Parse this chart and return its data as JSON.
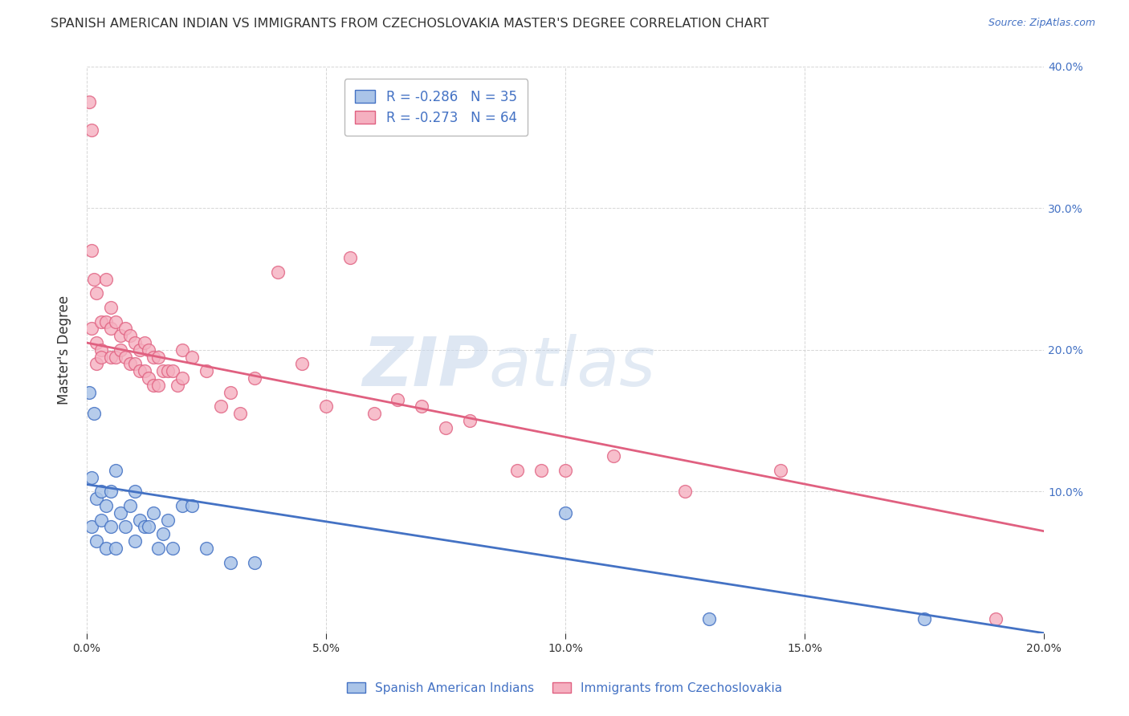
{
  "title": "SPANISH AMERICAN INDIAN VS IMMIGRANTS FROM CZECHOSLOVAKIA MASTER'S DEGREE CORRELATION CHART",
  "source": "Source: ZipAtlas.com",
  "ylabel": "Master's Degree",
  "legend_label1": "Spanish American Indians",
  "legend_label2": "Immigrants from Czechoslovakia",
  "r1": -0.286,
  "n1": 35,
  "r2": -0.273,
  "n2": 64,
  "color1": "#aac4e8",
  "color2": "#f5b0c0",
  "line_color1": "#4472c4",
  "line_color2": "#e06080",
  "xlim": [
    0.0,
    0.2
  ],
  "ylim": [
    0.0,
    0.4
  ],
  "xticks": [
    0.0,
    0.05,
    0.1,
    0.15,
    0.2
  ],
  "yticks": [
    0.0,
    0.1,
    0.2,
    0.3,
    0.4
  ],
  "xticklabels": [
    "0.0%",
    "5.0%",
    "10.0%",
    "15.0%",
    "20.0%"
  ],
  "yticklabels_right": [
    "",
    "10.0%",
    "20.0%",
    "30.0%",
    "40.0%"
  ],
  "background_color": "#ffffff",
  "scatter1_x": [
    0.0005,
    0.001,
    0.001,
    0.0015,
    0.002,
    0.002,
    0.003,
    0.003,
    0.004,
    0.004,
    0.005,
    0.005,
    0.006,
    0.006,
    0.007,
    0.008,
    0.009,
    0.01,
    0.01,
    0.011,
    0.012,
    0.013,
    0.014,
    0.015,
    0.016,
    0.017,
    0.018,
    0.02,
    0.022,
    0.025,
    0.03,
    0.035,
    0.1,
    0.13,
    0.175
  ],
  "scatter1_y": [
    0.17,
    0.075,
    0.11,
    0.155,
    0.065,
    0.095,
    0.1,
    0.08,
    0.09,
    0.06,
    0.1,
    0.075,
    0.115,
    0.06,
    0.085,
    0.075,
    0.09,
    0.065,
    0.1,
    0.08,
    0.075,
    0.075,
    0.085,
    0.06,
    0.07,
    0.08,
    0.06,
    0.09,
    0.09,
    0.06,
    0.05,
    0.05,
    0.085,
    0.01,
    0.01
  ],
  "scatter2_x": [
    0.0005,
    0.001,
    0.001,
    0.001,
    0.0015,
    0.002,
    0.002,
    0.002,
    0.003,
    0.003,
    0.003,
    0.004,
    0.004,
    0.005,
    0.005,
    0.005,
    0.006,
    0.006,
    0.007,
    0.007,
    0.008,
    0.008,
    0.009,
    0.009,
    0.01,
    0.01,
    0.011,
    0.011,
    0.012,
    0.012,
    0.013,
    0.013,
    0.014,
    0.014,
    0.015,
    0.015,
    0.016,
    0.017,
    0.018,
    0.019,
    0.02,
    0.02,
    0.022,
    0.025,
    0.028,
    0.03,
    0.032,
    0.035,
    0.04,
    0.045,
    0.05,
    0.055,
    0.06,
    0.065,
    0.07,
    0.075,
    0.08,
    0.09,
    0.095,
    0.1,
    0.11,
    0.125,
    0.145,
    0.19
  ],
  "scatter2_y": [
    0.375,
    0.355,
    0.215,
    0.27,
    0.25,
    0.24,
    0.205,
    0.19,
    0.22,
    0.2,
    0.195,
    0.25,
    0.22,
    0.23,
    0.215,
    0.195,
    0.22,
    0.195,
    0.21,
    0.2,
    0.215,
    0.195,
    0.21,
    0.19,
    0.205,
    0.19,
    0.2,
    0.185,
    0.205,
    0.185,
    0.2,
    0.18,
    0.195,
    0.175,
    0.195,
    0.175,
    0.185,
    0.185,
    0.185,
    0.175,
    0.2,
    0.18,
    0.195,
    0.185,
    0.16,
    0.17,
    0.155,
    0.18,
    0.255,
    0.19,
    0.16,
    0.265,
    0.155,
    0.165,
    0.16,
    0.145,
    0.15,
    0.115,
    0.115,
    0.115,
    0.125,
    0.1,
    0.115,
    0.01
  ],
  "watermark_zip": "ZIP",
  "watermark_atlas": "atlas",
  "title_color": "#333333",
  "axis_label_color": "#333333",
  "tick_color": "#333333",
  "right_tick_color": "#4472c4",
  "grid_color": "#cccccc",
  "title_fontsize": 11.5,
  "axis_label_fontsize": 12,
  "tick_fontsize": 10,
  "source_fontsize": 9,
  "reg_line1_x0": 0.0,
  "reg_line1_y0": 0.105,
  "reg_line1_x1": 0.2,
  "reg_line1_y1": 0.0,
  "reg_line2_x0": 0.0,
  "reg_line2_y0": 0.205,
  "reg_line2_x1": 0.2,
  "reg_line2_y1": 0.072
}
